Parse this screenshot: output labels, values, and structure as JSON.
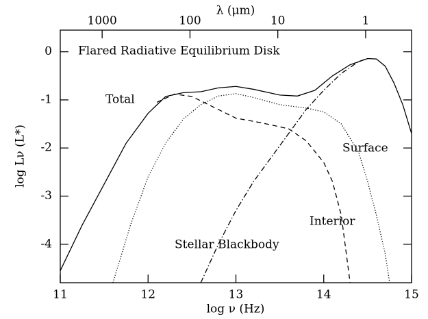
{
  "chart_data": {
    "type": "line",
    "title": "Flared Radiative Equilibrium Disk",
    "xlabel": "log ν (Hz)",
    "ylabel": "log Lν (L*)",
    "x2label": "λ (μm)",
    "xlim": [
      11,
      15
    ],
    "ylim": [
      -4.8,
      0.45
    ],
    "xticks": [
      11,
      12,
      13,
      14,
      15
    ],
    "yticks": [
      {
        "value": 0,
        "label": "0"
      },
      -1,
      -2,
      -3,
      -4
    ],
    "x2ticks": [
      {
        "value": 11.477,
        "label": "1000"
      },
      {
        "value": 12.477,
        "label": "100"
      },
      {
        "value": 13.477,
        "label": "10"
      },
      {
        "value": 14.477,
        "label": "1"
      }
    ],
    "series": [
      {
        "name": "Total",
        "color": "#000000",
        "style": "solid",
        "x": [
          11,
          11.25,
          11.5,
          11.75,
          12,
          12.2,
          12.4,
          12.6,
          12.8,
          13,
          13.2,
          13.5,
          13.7,
          13.9,
          14.1,
          14.3,
          14.5,
          14.6,
          14.7,
          14.8,
          14.9,
          15
        ],
        "values": [
          -4.55,
          -3.6,
          -2.75,
          -1.9,
          -1.28,
          -0.93,
          -0.85,
          -0.83,
          -0.75,
          -0.72,
          -0.78,
          -0.9,
          -0.92,
          -0.8,
          -0.5,
          -0.27,
          -0.14,
          -0.15,
          -0.3,
          -0.65,
          -1.1,
          -1.7
        ]
      },
      {
        "name": "Surface",
        "color": "#000000",
        "style": "dotted",
        "x": [
          11.6,
          11.8,
          12,
          12.2,
          12.4,
          12.6,
          12.8,
          13,
          13.2,
          13.5,
          13.8,
          14,
          14.2,
          14.4,
          14.5,
          14.6,
          14.7,
          14.75
        ],
        "values": [
          -4.8,
          -3.6,
          -2.6,
          -1.9,
          -1.4,
          -1.1,
          -0.92,
          -0.87,
          -0.95,
          -1.1,
          -1.17,
          -1.25,
          -1.5,
          -2.1,
          -2.7,
          -3.4,
          -4.2,
          -4.8
        ]
      },
      {
        "name": "Interior",
        "color": "#000000",
        "style": "dashed",
        "x": [
          12.1,
          12.3,
          12.5,
          12.8,
          13,
          13.3,
          13.6,
          13.8,
          14,
          14.1,
          14.2,
          14.3
        ],
        "values": [
          -1.05,
          -0.88,
          -0.93,
          -1.2,
          -1.38,
          -1.48,
          -1.6,
          -1.85,
          -2.3,
          -2.7,
          -3.4,
          -4.8
        ]
      },
      {
        "name": "Stellar Blackbody",
        "color": "#000000",
        "style": "dashdot",
        "x": [
          12.6,
          12.8,
          13,
          13.2,
          13.4,
          13.6,
          13.8,
          14,
          14.2,
          14.4,
          14.5
        ],
        "values": [
          -4.8,
          -4.0,
          -3.3,
          -2.7,
          -2.2,
          -1.7,
          -1.2,
          -0.8,
          -0.45,
          -0.2,
          -0.14
        ]
      }
    ]
  }
}
